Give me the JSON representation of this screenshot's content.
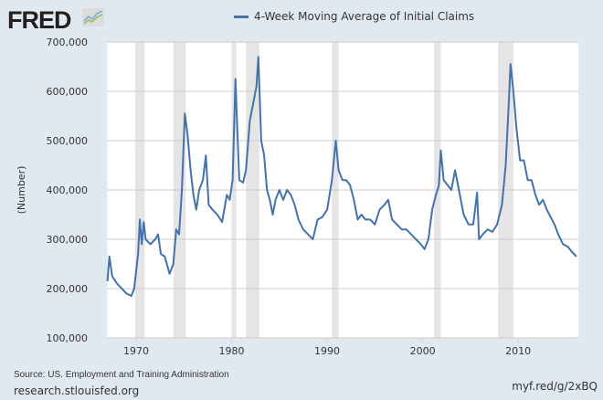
{
  "header": {
    "logo": "FRED",
    "logo_icon": "fred-chart-icon"
  },
  "footer": {
    "source": "Source: US. Employment and Training Administration",
    "site": "research.stlouisfed.org",
    "short_url": "myf.red/g/2xBQ"
  },
  "colors": {
    "series": "#4572a7",
    "recession": "#e5e5e5",
    "background": "#e1e9f0",
    "plot": "#ffffff",
    "grid": "#cccccc"
  },
  "chart_data": {
    "type": "line",
    "title": "",
    "ylabel": "(Number)",
    "xlabel": "",
    "xlim": [
      1967,
      2016.3
    ],
    "ylim": [
      100000,
      700000
    ],
    "grid": true,
    "legend_placement": "top",
    "y_ticks": [
      "100,000",
      "200,000",
      "300,000",
      "400,000",
      "500,000",
      "600,000",
      "700,000"
    ],
    "y_tick_values": [
      100000,
      200000,
      300000,
      400000,
      500000,
      600000,
      700000
    ],
    "x_ticks": [
      "1970",
      "1980",
      "1990",
      "2000",
      "2010"
    ],
    "x_tick_values": [
      1970,
      1980,
      1990,
      2000,
      2010
    ],
    "recessions": [
      [
        1969.9,
        1970.9
      ],
      [
        1973.9,
        1975.2
      ],
      [
        1980.0,
        1980.5
      ],
      [
        1981.5,
        1982.9
      ],
      [
        1990.5,
        1991.2
      ],
      [
        2001.2,
        2001.9
      ],
      [
        2007.9,
        2009.5
      ]
    ],
    "series": [
      {
        "name": "4-Week Moving Average of Initial Claims",
        "x": [
          1967.0,
          1967.2,
          1967.5,
          1968,
          1968.5,
          1969,
          1969.5,
          1969.8,
          1970.2,
          1970.4,
          1970.6,
          1970.8,
          1971,
          1971.5,
          1972,
          1972.3,
          1972.6,
          1973,
          1973.5,
          1973.9,
          1974.2,
          1974.5,
          1974.8,
          1975.1,
          1975.4,
          1975.7,
          1976,
          1976.3,
          1976.6,
          1977,
          1977.3,
          1977.6,
          1978,
          1978.5,
          1979,
          1979.5,
          1979.8,
          1980.1,
          1980.4,
          1980.6,
          1980.8,
          1981.2,
          1981.5,
          1981.9,
          1982.3,
          1982.6,
          1982.8,
          1983.1,
          1983.4,
          1983.7,
          1984,
          1984.3,
          1984.6,
          1985,
          1985.4,
          1985.8,
          1986.2,
          1986.6,
          1987,
          1987.5,
          1988,
          1988.5,
          1989,
          1989.5,
          1990,
          1990.5,
          1990.9,
          1991.2,
          1991.6,
          1992,
          1992.4,
          1992.8,
          1993.2,
          1993.6,
          1994,
          1994.5,
          1995,
          1995.5,
          1996,
          1996.4,
          1996.8,
          1997.3,
          1997.8,
          1998.3,
          1998.8,
          1999.3,
          1999.8,
          2000.2,
          2000.6,
          2001.0,
          2001.4,
          2001.7,
          2001.9,
          2002.2,
          2002.6,
          2003,
          2003.4,
          2003.8,
          2004.3,
          2004.8,
          2005.3,
          2005.7,
          2005.9,
          2006.3,
          2006.8,
          2007.3,
          2007.8,
          2008.3,
          2008.7,
          2009.0,
          2009.2,
          2009.5,
          2009.8,
          2010.2,
          2010.6,
          2011,
          2011.4,
          2011.8,
          2012.2,
          2012.6,
          2013,
          2013.4,
          2013.8,
          2014.2,
          2014.7,
          2015.2,
          2015.6,
          2016.1
        ],
        "values": [
          215000,
          265000,
          225000,
          210000,
          200000,
          190000,
          185000,
          200000,
          270000,
          340000,
          290000,
          335000,
          300000,
          290000,
          300000,
          310000,
          270000,
          265000,
          230000,
          250000,
          320000,
          310000,
          400000,
          555000,
          510000,
          440000,
          390000,
          360000,
          400000,
          420000,
          470000,
          370000,
          360000,
          350000,
          335000,
          390000,
          380000,
          420000,
          625000,
          520000,
          420000,
          415000,
          440000,
          540000,
          580000,
          610000,
          670000,
          500000,
          470000,
          400000,
          380000,
          350000,
          380000,
          400000,
          380000,
          400000,
          390000,
          370000,
          340000,
          320000,
          310000,
          300000,
          340000,
          345000,
          360000,
          420000,
          500000,
          440000,
          420000,
          420000,
          410000,
          380000,
          340000,
          350000,
          340000,
          340000,
          330000,
          360000,
          370000,
          380000,
          340000,
          330000,
          320000,
          320000,
          310000,
          300000,
          290000,
          280000,
          300000,
          360000,
          390000,
          410000,
          480000,
          420000,
          410000,
          400000,
          440000,
          400000,
          350000,
          330000,
          330000,
          395000,
          300000,
          310000,
          320000,
          315000,
          330000,
          370000,
          450000,
          570000,
          655000,
          600000,
          530000,
          460000,
          460000,
          420000,
          420000,
          390000,
          370000,
          380000,
          360000,
          345000,
          330000,
          310000,
          290000,
          285000,
          275000,
          265000
        ]
      }
    ]
  }
}
